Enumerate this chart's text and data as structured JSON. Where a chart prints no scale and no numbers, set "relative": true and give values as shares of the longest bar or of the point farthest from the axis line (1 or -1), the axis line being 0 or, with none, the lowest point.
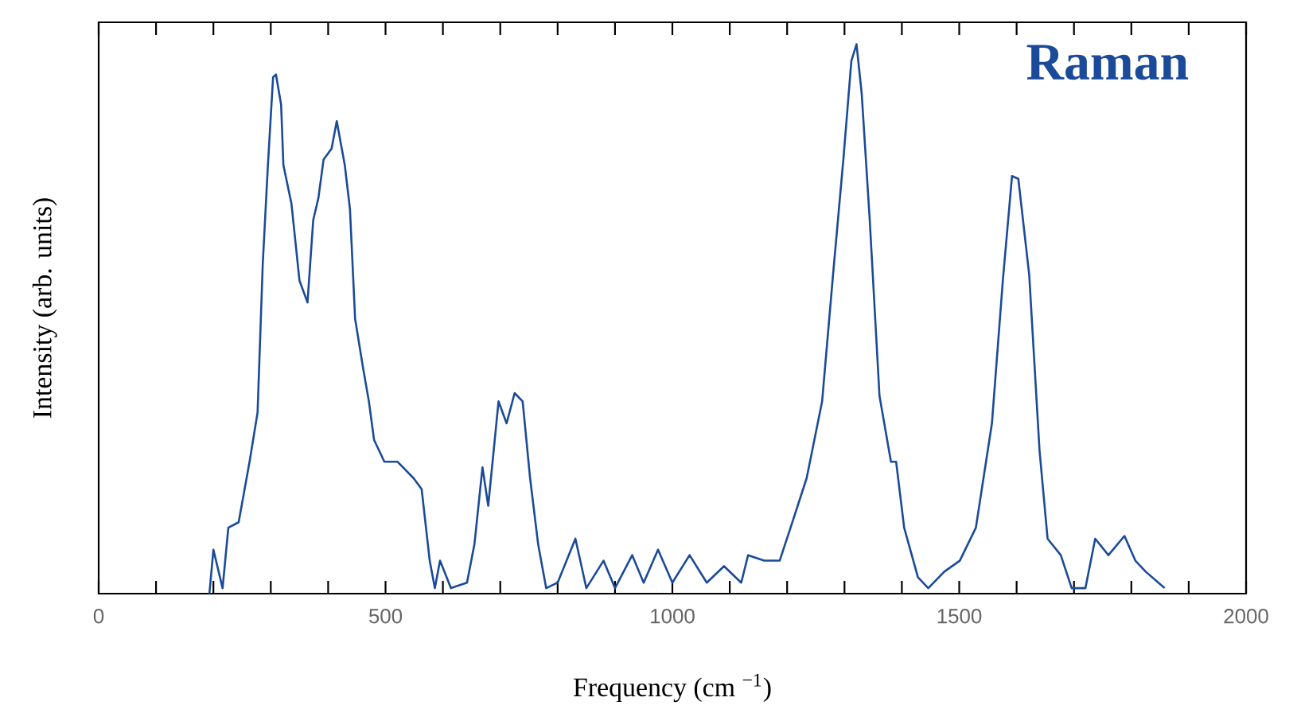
{
  "chart_data": {
    "type": "line",
    "relative": true,
    "xlabel": "Frequency (cm $^{−1}$)",
    "ylabel": "Intensity (arb. units)",
    "annotations": [
      "**Raman**"
    ],
    "xlim": [
      0,
      2000
    ],
    "xticks": [
      0,
      {
        "value": 100,
        "label": null
      },
      {
        "value": 200,
        "label": null
      },
      {
        "value": 300,
        "label": null
      },
      {
        "value": 400,
        "label": null
      },
      500,
      {
        "value": 600,
        "label": null
      },
      {
        "value": 700,
        "label": null
      },
      {
        "value": 800,
        "label": null
      },
      {
        "value": 900,
        "label": null
      },
      1000,
      {
        "value": 1100,
        "label": null
      },
      {
        "value": 1200,
        "label": null
      },
      {
        "value": 1300,
        "label": null
      },
      {
        "value": 1400,
        "label": null
      },
      1500,
      {
        "value": 1600,
        "label": null
      },
      {
        "value": 1700,
        "label": null
      },
      {
        "value": 1800,
        "label": null
      },
      {
        "value": 1900,
        "label": null
      },
      2000
    ],
    "series": [
      {
        "color": "#1a4a99",
        "x": [
          193,
          200,
          216,
          226,
          244,
          263,
          277,
          286,
          295,
          304,
          309,
          318,
          322,
          336,
          350,
          364,
          374,
          383,
          392,
          406,
          415,
          429,
          438,
          447,
          461,
          471,
          480,
          498,
          521,
          549,
          563,
          577,
          586,
          595,
          614,
          642,
          655,
          669,
          679,
          697,
          711,
          725,
          739,
          752,
          766,
          780,
          800,
          831,
          850,
          880,
          900,
          930,
          950,
          975,
          1000,
          1030,
          1060,
          1090,
          1120,
          1132,
          1160,
          1187,
          1206,
          1234,
          1261,
          1280,
          1298,
          1312,
          1321,
          1330,
          1344,
          1361,
          1381,
          1390,
          1404,
          1428,
          1446,
          1474,
          1501,
          1529,
          1557,
          1576,
          1592,
          1603,
          1622,
          1640,
          1654,
          1677,
          1696,
          1720,
          1737,
          1760,
          1788,
          1807,
          1825,
          1858
        ],
        "values": [
          0,
          0.08,
          0.01,
          0.12,
          0.13,
          0.24,
          0.33,
          0.6,
          0.78,
          0.94,
          0.945,
          0.89,
          0.78,
          0.71,
          0.57,
          0.53,
          0.68,
          0.72,
          0.79,
          0.81,
          0.86,
          0.78,
          0.7,
          0.5,
          0.41,
          0.35,
          0.28,
          0.24,
          0.24,
          0.21,
          0.19,
          0.06,
          0.01,
          0.06,
          0.01,
          0.02,
          0.09,
          0.23,
          0.16,
          0.35,
          0.31,
          0.365,
          0.35,
          0.21,
          0.09,
          0.01,
          0.02,
          0.1,
          0.01,
          0.06,
          0.01,
          0.07,
          0.02,
          0.08,
          0.02,
          0.07,
          0.02,
          0.05,
          0.02,
          0.07,
          0.06,
          0.06,
          0.12,
          0.21,
          0.35,
          0.58,
          0.79,
          0.97,
          1.0,
          0.91,
          0.68,
          0.36,
          0.24,
          0.24,
          0.12,
          0.03,
          0.01,
          0.04,
          0.06,
          0.12,
          0.31,
          0.57,
          0.76,
          0.755,
          0.58,
          0.26,
          0.1,
          0.07,
          0.01,
          0.01,
          0.1,
          0.07,
          0.105,
          0.06,
          0.04,
          0.01
        ]
      }
    ]
  }
}
